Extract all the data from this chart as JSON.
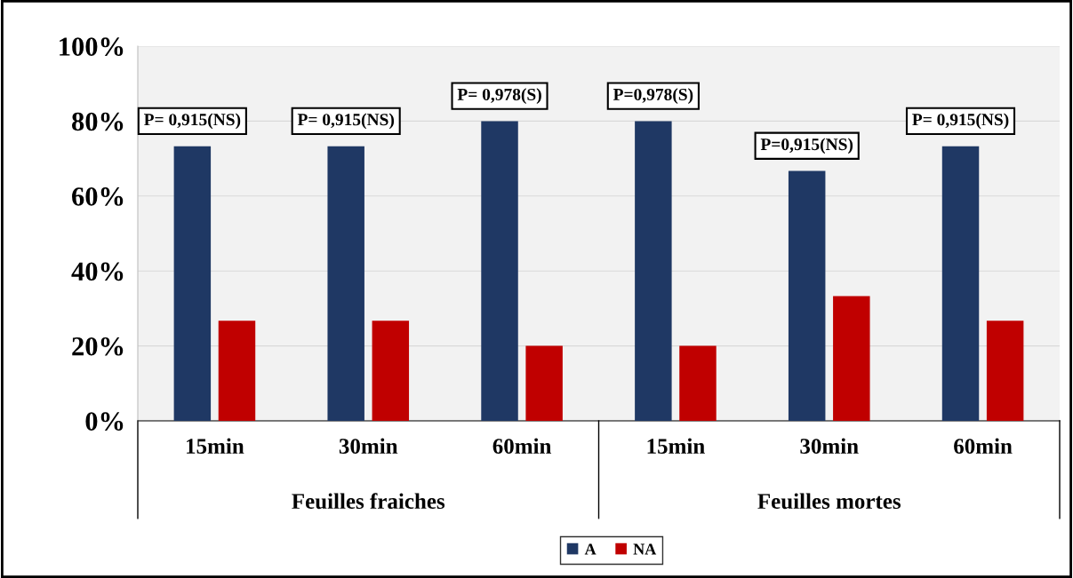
{
  "chart_data": {
    "type": "bar",
    "categories": [
      "15min",
      "30min",
      "60min",
      "15min",
      "30min",
      "60min"
    ],
    "series": [
      {
        "name": "A",
        "color": "#1f3864",
        "values": [
          73.3,
          73.3,
          80,
          80,
          66.7,
          73.3
        ]
      },
      {
        "name": "NA",
        "color": "#c00000",
        "values": [
          26.7,
          26.7,
          20,
          20,
          33.3,
          26.7
        ]
      }
    ],
    "ylim": [
      0,
      100
    ],
    "yticks": [
      {
        "value": 0,
        "label": "0%"
      },
      {
        "value": 20,
        "label": "20%"
      },
      {
        "value": 40,
        "label": "40%"
      },
      {
        "value": 60,
        "label": "60%"
      },
      {
        "value": 80,
        "label": "80%"
      },
      {
        "value": 100,
        "label": "100%"
      }
    ],
    "grid": "y",
    "legend": "bottom",
    "annotations": [
      "P= 0,915(NS)",
      "P= 0,915(NS)",
      "P= 0,978(S)",
      "P=0,978(S)",
      "P=0,915(NS)",
      "P= 0,915(NS)",
      "Feuilles fraiches",
      "Feuilles mortes"
    ]
  }
}
